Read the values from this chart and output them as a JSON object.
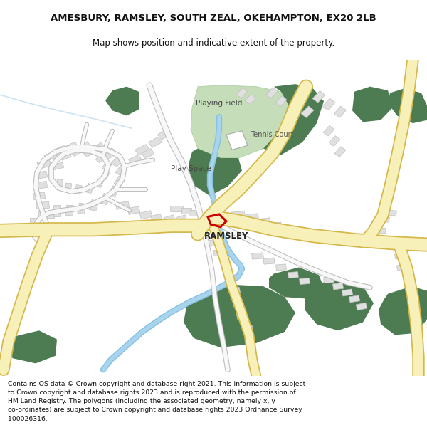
{
  "title_line1": "AMESBURY, RAMSLEY, SOUTH ZEAL, OKEHAMPTON, EX20 2LB",
  "title_line2": "Map shows position and indicative extent of the property.",
  "footer_lines": [
    "Contains OS data © Crown copyright and database right 2021. This information is subject",
    "to Crown copyright and database rights 2023 and is reproduced with the permission of",
    "HM Land Registry. The polygons (including the associated geometry, namely x, y",
    "co-ordinates) are subject to Crown copyright and database rights 2023 Ordnance Survey",
    "100026316."
  ],
  "map_bg": "#f5f5f5",
  "fig_bg": "#ffffff",
  "road_main_color": "#f7f0b8",
  "road_main_edge": "#d4b84a",
  "road_minor_color": "#ffffff",
  "road_minor_edge": "#cccccc",
  "green_dark": "#4d7c52",
  "green_light": "#c5ddb8",
  "water_color": "#85c1e0",
  "building_color": "#e0e0e0",
  "building_edge": "#c0c0c0",
  "highlight_color": "#cc0000",
  "text_dark": "#333333",
  "text_mid": "#555555"
}
